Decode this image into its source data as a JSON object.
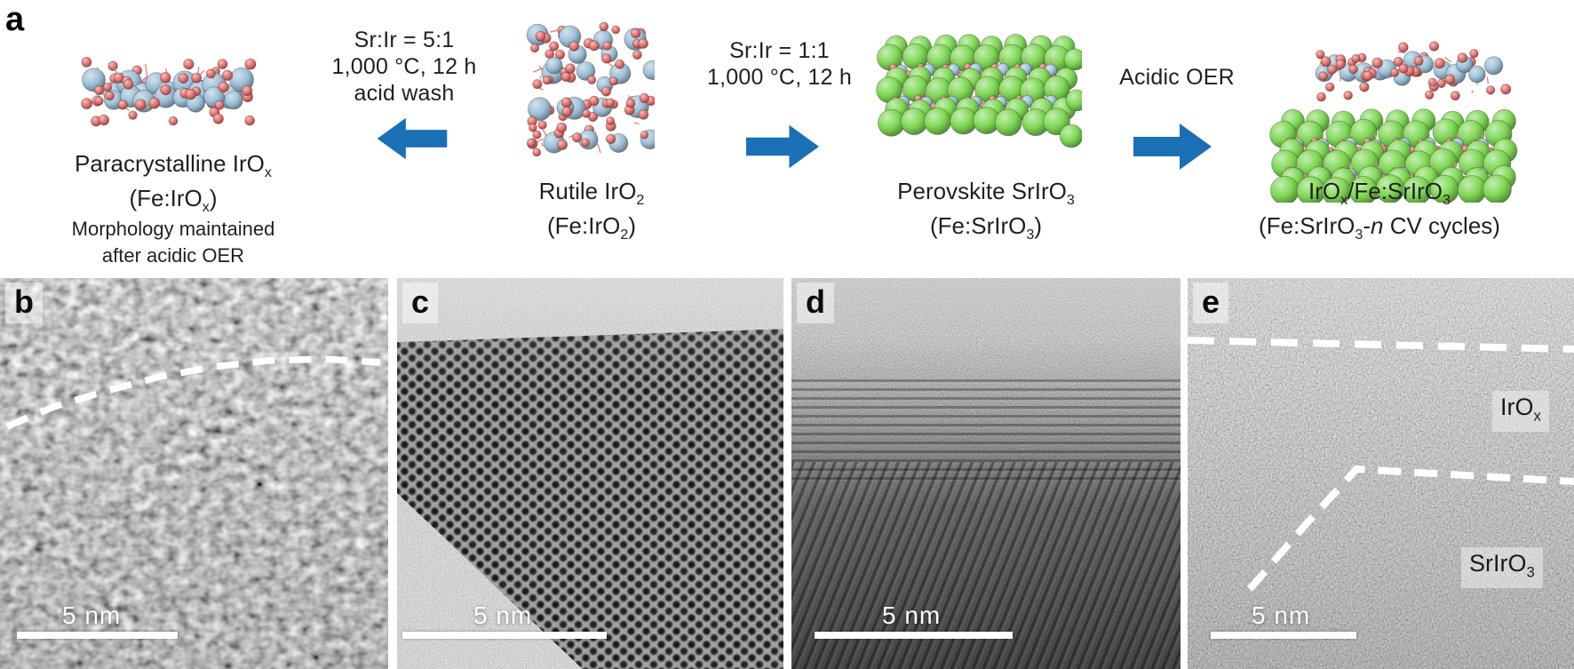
{
  "figure": {
    "background": "#ffffff",
    "text_color": "#231f20",
    "arrow_color": "#1b6fb5",
    "panel_a_label": "a",
    "atom_colors": {
      "iridium_blue": "#9cc0d8",
      "oxygen_red": "#e4726e",
      "strontium_green": "#7fd855"
    },
    "conditions": {
      "left": [
        "Sr:Ir = 5:1",
        "1,000 °C, 12 h",
        "acid wash"
      ],
      "middle": [
        "Sr:Ir = 1:1",
        "1,000 °C, 12 h"
      ],
      "right": [
        "Acidic OER"
      ]
    },
    "species": {
      "paracrystalline": {
        "line1_main": "Paracrystalline IrO",
        "line1_sub": "x",
        "line2_pre": "(Fe:IrO",
        "line2_sub": "x",
        "line2_post": ")",
        "note_line1": "Morphology maintained",
        "note_line2": "after acidic OER"
      },
      "rutile": {
        "line1_main": "Rutile IrO",
        "line1_sub": "2",
        "line2_pre": "(Fe:IrO",
        "line2_sub": "2",
        "line2_post": ")"
      },
      "perovskite": {
        "line1_main": "Perovskite SrIrO",
        "line1_sub": "3",
        "line2_pre": "(Fe:SrIrO",
        "line2_sub": "3",
        "line2_post": ")"
      },
      "product": {
        "line1_seg1": "IrO",
        "line1_sub1": "x",
        "line1_seg2": "/Fe:SrIrO",
        "line1_sub2": "3",
        "line2_pre": "(Fe:SrIrO",
        "line2_sub": "3",
        "line2_mid": "-",
        "line2_italic": "n",
        "line2_post": " CV cycles)"
      }
    },
    "micrographs": [
      {
        "label": "b",
        "scale_text": "5 nm"
      },
      {
        "label": "c",
        "scale_text": "5 nm"
      },
      {
        "label": "d",
        "scale_text": "5 nm"
      },
      {
        "label": "e",
        "scale_text": "5 nm",
        "region_top_main": "IrO",
        "region_top_sub": "x",
        "region_bottom_main": "SrIrO",
        "region_bottom_sub": "3"
      }
    ]
  }
}
